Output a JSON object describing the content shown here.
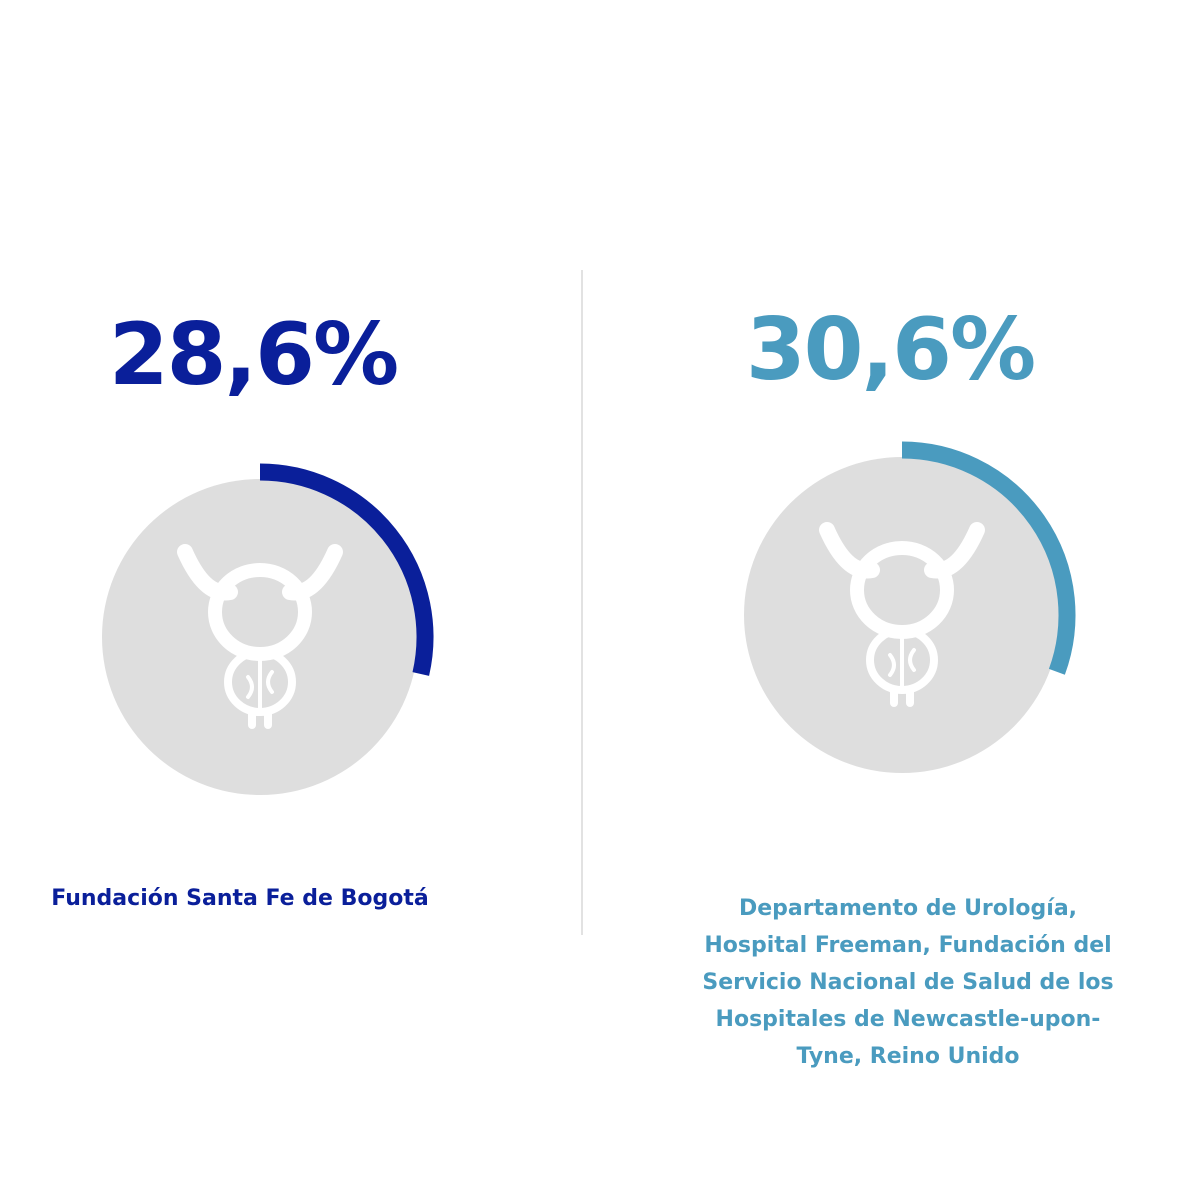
{
  "chart_data": {
    "type": "radial",
    "categories": [
      "Fundación Santa Fe de Bogotá",
      "Departamento de Urología, Hospital Freeman, Fundación del Servicio Nacional de Salud de los Hospitales de Newcastle-upon-Tyne, Reino Unido"
    ],
    "values": [
      28.6,
      30.6
    ],
    "value_labels": [
      "28,6%",
      "30,6%"
    ],
    "colors": [
      "#0a1f9a",
      "#4a9bbf"
    ]
  }
}
